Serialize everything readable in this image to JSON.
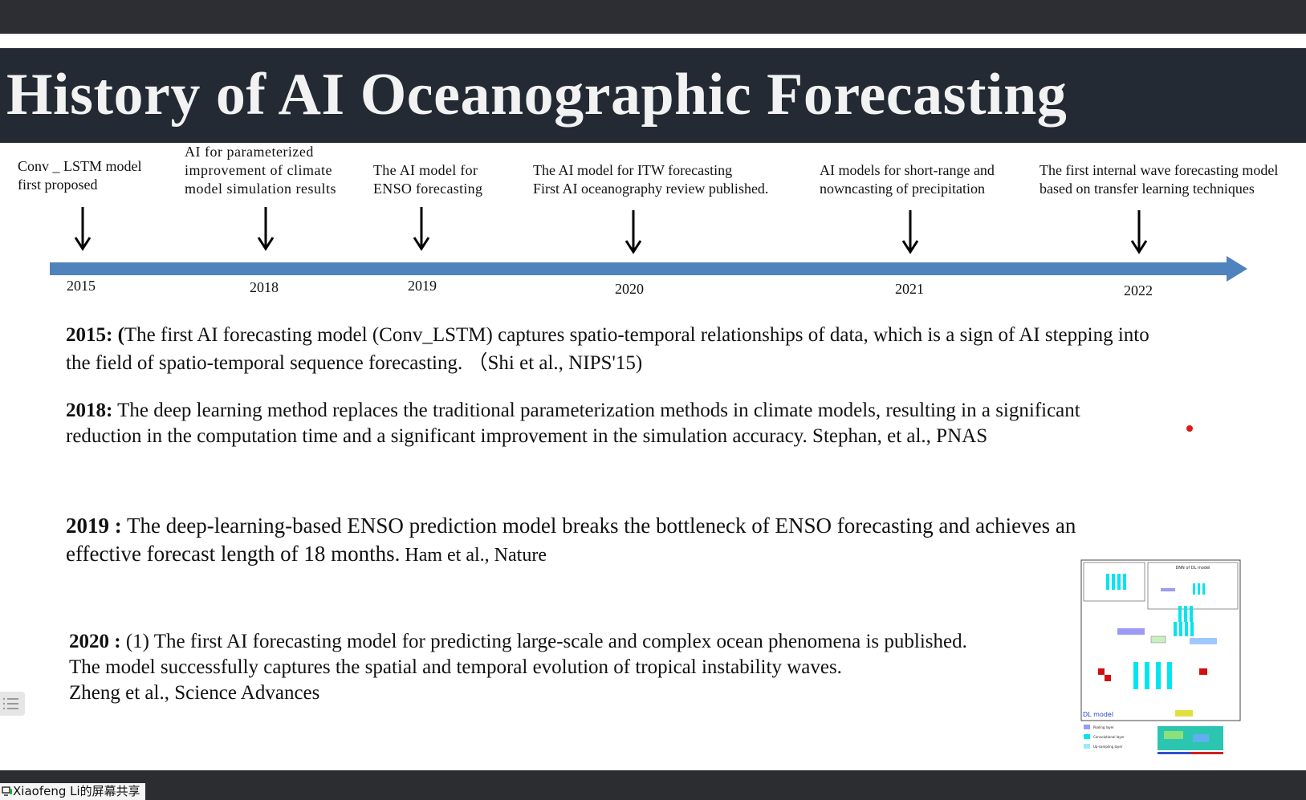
{
  "slide": {
    "title": "History of AI Oceanographic Forecasting"
  },
  "timeline": {
    "axis_color": "#4f83bd",
    "events": [
      {
        "year": "2015",
        "label_lines": [
          "Conv _ LSTM  model",
          "first proposed"
        ]
      },
      {
        "year": "2018",
        "label_lines": [
          "AI for parameterized",
          "improvement of climate",
          "model simulation results"
        ]
      },
      {
        "year": "2019",
        "label_lines": [
          "The AI model for",
          "ENSO forecasting"
        ]
      },
      {
        "year": "2020",
        "label_lines": [
          "The AI model for ITW forecasting",
          "First AI oceanography review published."
        ]
      },
      {
        "year": "2021",
        "label_lines": [
          "AI models for short-range and",
          "nowncasting of precipitation"
        ]
      },
      {
        "year": "2022",
        "label_lines": [
          "The first internal wave forecasting model",
          "based on transfer learning techniques"
        ]
      }
    ]
  },
  "paragraphs": {
    "p2015": {
      "lead": "2015: (",
      "line1": "The first AI forecasting model (Conv_LSTM) captures spatio-temporal relationships of data, which is a sign of AI stepping into",
      "line2": "the field of spatio-temporal sequence forecasting.  （Shi et al., NIPS'15)"
    },
    "p2018": {
      "lead": "2018:",
      "line1": "  The deep learning method replaces the traditional parameterization methods in climate models, resulting in a significant",
      "line2": "reduction in the computation time and a significant improvement in the simulation accuracy. Stephan, et al., PNAS"
    },
    "p2019": {
      "lead": "2019 :",
      "line1": " The deep-learning-based ENSO prediction model breaks the bottleneck of ENSO forecasting and achieves an",
      "line2": "effective forecast length of 18 months.",
      "cite": " Ham et al., Nature"
    },
    "p2020": {
      "lead": "2020 :",
      "line1": " (1) The first AI forecasting model for predicting large-scale and complex ocean phenomena is published.",
      "line2": "The model successfully captures the spatial and temporal evolution of tropical instability waves.",
      "line3": " Zheng et al., Science Advances"
    }
  },
  "figure": {
    "top_label": "DNN of DL model",
    "corner_label": "DL model",
    "legend": [
      "Pooling layer",
      "Convolutional layer",
      "Up-sampling layer"
    ]
  },
  "screen_share": {
    "label": "Xiaofeng Li的屏幕共享"
  },
  "icons": {
    "arrows": "down-arrow-icon",
    "sidebar": "list-icon",
    "share": "screen-share-icon"
  }
}
